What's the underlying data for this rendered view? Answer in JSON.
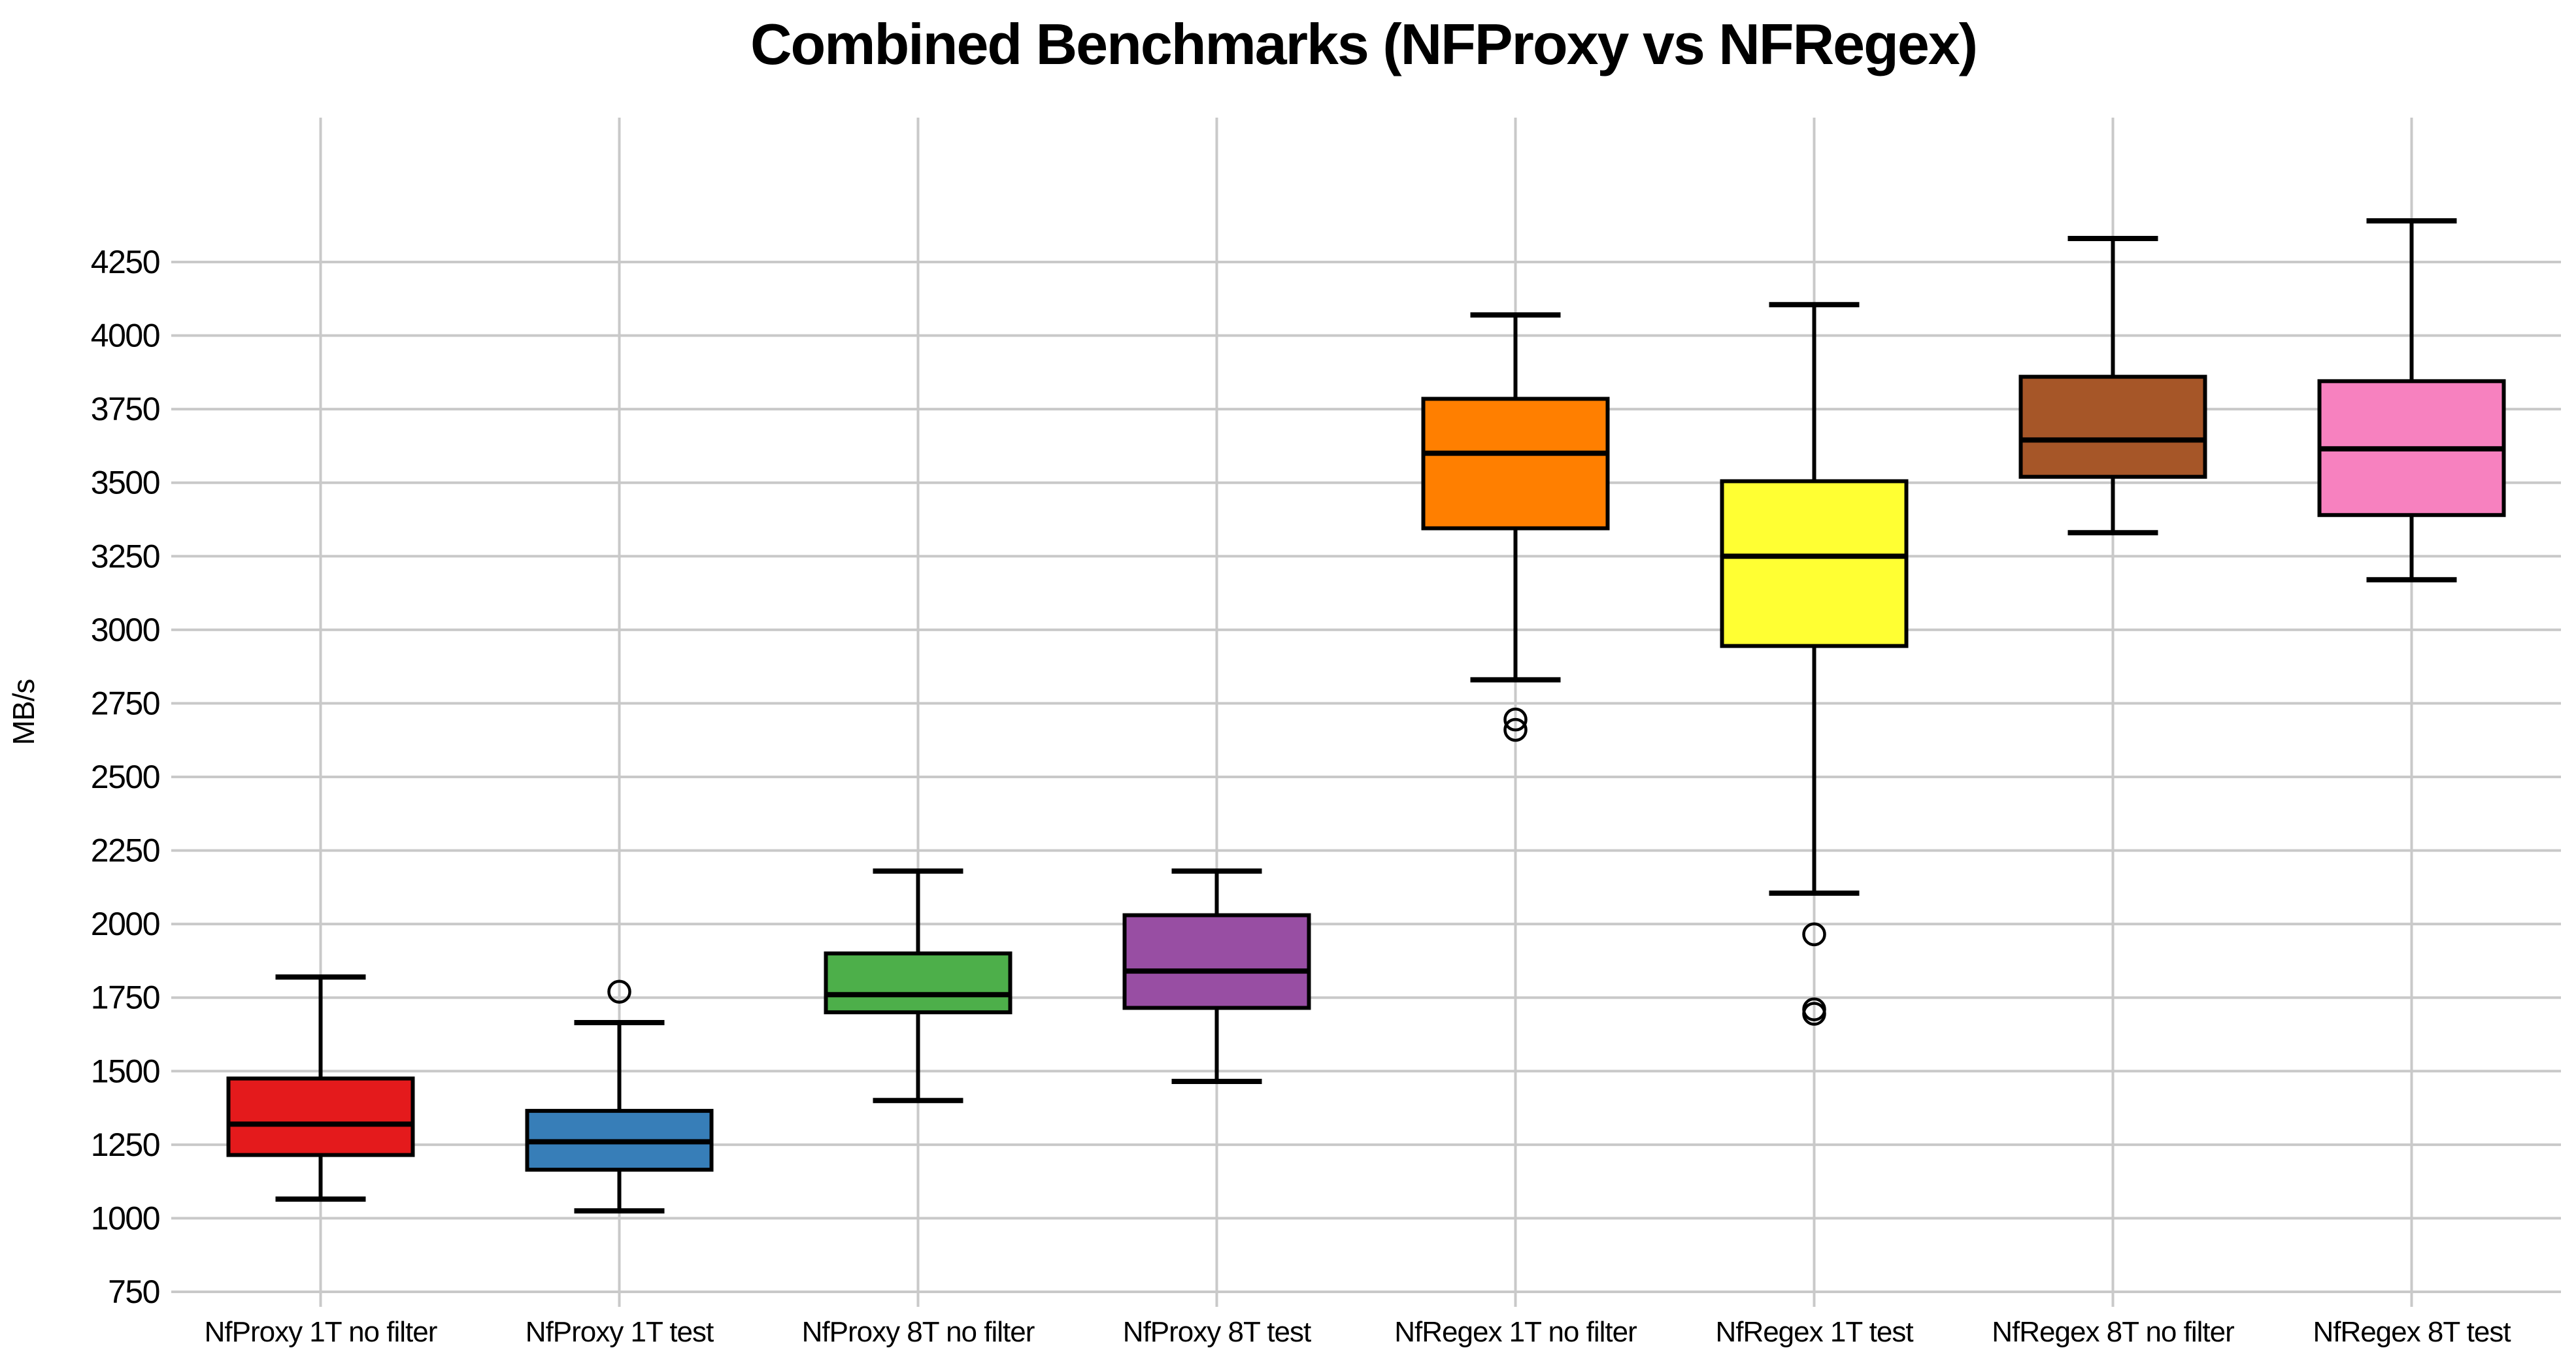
{
  "chart_data": {
    "type": "box",
    "title": "Combined Benchmarks (NFProxy vs NFRegex)",
    "ylabel": "MB/s",
    "xlabel": "",
    "grid": true,
    "legend": "none",
    "background": "#ffffff",
    "grid_color": "#c9c9c9",
    "box_border_color": "#000000",
    "ylim": [
      750,
      4250
    ],
    "yticks": [
      750,
      1000,
      1250,
      1500,
      1750,
      2000,
      2250,
      2500,
      2750,
      3000,
      3250,
      3500,
      3750,
      4000,
      4250
    ],
    "categories": [
      "NfProxy 1T no filter",
      "NfProxy 1T test",
      "NfProxy 8T no filter",
      "NfProxy 8T test",
      "NfRegex 1T no filter",
      "NfRegex 1T test",
      "NfRegex 8T no filter",
      "NfRegex 8T test"
    ],
    "series": [
      {
        "label": "NfProxy 1T no filter",
        "color": "#e41a1c",
        "whisker_low": 1065,
        "q1": 1215,
        "median": 1320,
        "q3": 1475,
        "whisker_high": 1820,
        "outliers": []
      },
      {
        "label": "NfProxy 1T test",
        "color": "#377eb8",
        "whisker_low": 1025,
        "q1": 1165,
        "median": 1260,
        "q3": 1365,
        "whisker_high": 1665,
        "outliers": [
          1770
        ]
      },
      {
        "label": "NfProxy 8T no filter",
        "color": "#4daf4a",
        "whisker_low": 1400,
        "q1": 1700,
        "median": 1760,
        "q3": 1900,
        "whisker_high": 2180,
        "outliers": []
      },
      {
        "label": "NfProxy 8T test",
        "color": "#984ea3",
        "whisker_low": 1465,
        "q1": 1715,
        "median": 1840,
        "q3": 2030,
        "whisker_high": 2180,
        "outliers": []
      },
      {
        "label": "NfRegex 1T no filter",
        "color": "#ff7f00",
        "whisker_low": 2830,
        "q1": 3345,
        "median": 3600,
        "q3": 3785,
        "whisker_high": 4070,
        "outliers": [
          2695,
          2660
        ]
      },
      {
        "label": "NfRegex 1T test",
        "color": "#ffff33",
        "whisker_low": 2105,
        "q1": 2945,
        "median": 3250,
        "q3": 3505,
        "whisker_high": 4105,
        "outliers": [
          1965,
          1710,
          1695
        ]
      },
      {
        "label": "NfRegex 8T no filter",
        "color": "#a65628",
        "whisker_low": 3330,
        "q1": 3520,
        "median": 3645,
        "q3": 3860,
        "whisker_high": 4330,
        "outliers": []
      },
      {
        "label": "NfRegex 8T test",
        "color": "#f781bf",
        "whisker_low": 3170,
        "q1": 3390,
        "median": 3615,
        "q3": 3845,
        "whisker_high": 4390,
        "outliers": []
      }
    ]
  }
}
